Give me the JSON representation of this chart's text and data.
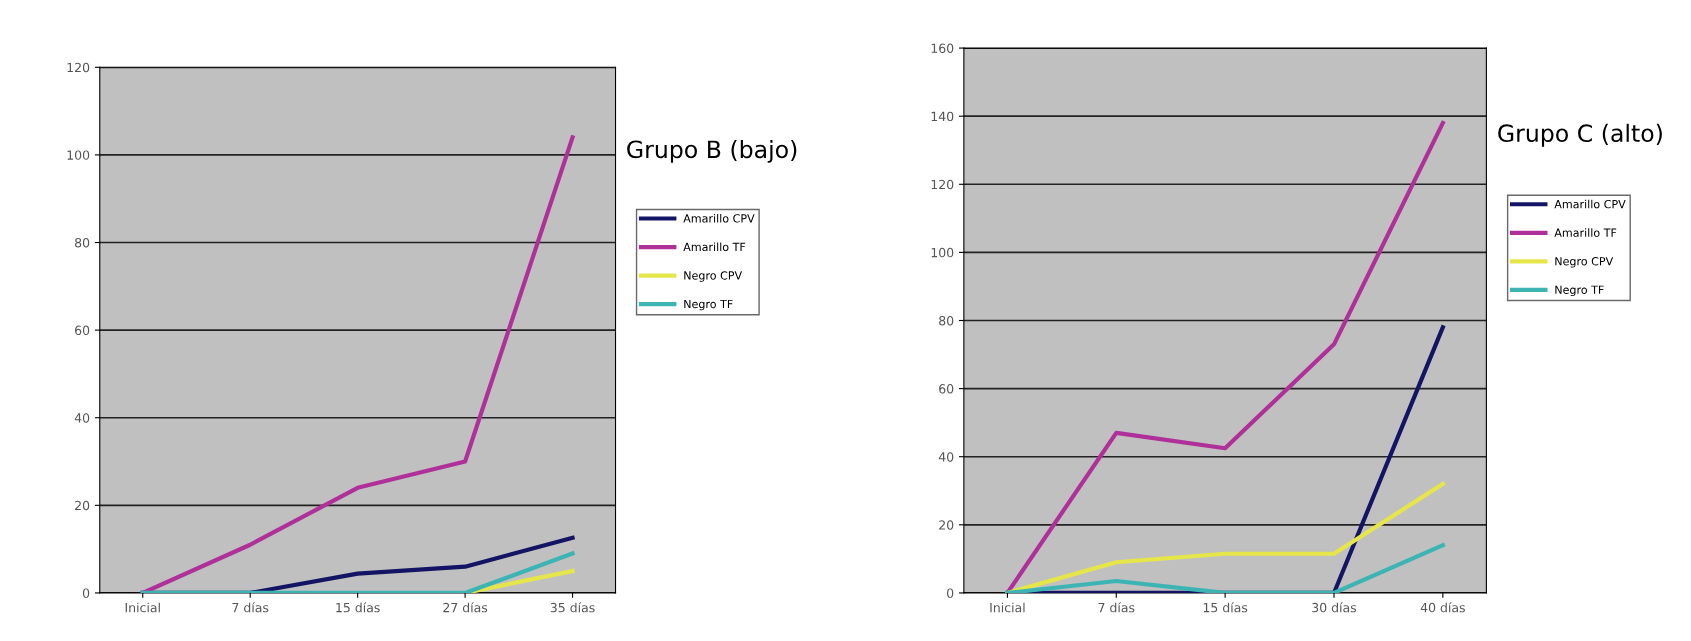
{
  "chart_data": [
    {
      "type": "line",
      "title": "Grupo B (bajo)",
      "categories": [
        "Inicial",
        "7 días",
        "15 días",
        "27 días",
        "35 días"
      ],
      "ylim": [
        0,
        120
      ],
      "yticks": [
        0,
        20,
        40,
        60,
        80,
        100,
        120
      ],
      "grid": "y",
      "legend": "right",
      "series": [
        {
          "name": "Amarillo CPV",
          "color": "#141464",
          "values": [
            0,
            0,
            4.4,
            6,
            12.6
          ]
        },
        {
          "name": "Amarillo TF",
          "color": "#b0309a",
          "values": [
            0,
            11,
            24,
            30,
            104
          ]
        },
        {
          "name": "Negro CPV",
          "color": "#e6e64a",
          "values": [
            null,
            null,
            null,
            0,
            5
          ]
        },
        {
          "name": "Negro TF",
          "color": "#3cb4b4",
          "values": [
            0,
            0,
            0,
            0,
            9
          ]
        }
      ]
    },
    {
      "type": "line",
      "title": "Grupo C (alto)",
      "categories": [
        "Inicial",
        "7 días",
        "15 días",
        "30 días",
        "40 días"
      ],
      "ylim": [
        0,
        160
      ],
      "yticks": [
        0,
        20,
        40,
        60,
        80,
        100,
        120,
        140,
        160
      ],
      "grid": "y",
      "legend": "right",
      "series": [
        {
          "name": "Amarillo CPV",
          "color": "#141464",
          "values": [
            0,
            0,
            0,
            0,
            78
          ]
        },
        {
          "name": "Amarillo TF",
          "color": "#b0309a",
          "values": [
            0,
            47,
            42.5,
            73,
            138
          ]
        },
        {
          "name": "Negro CPV",
          "color": "#e6e64a",
          "values": [
            0,
            9,
            11.5,
            11.5,
            32
          ]
        },
        {
          "name": "Negro TF",
          "color": "#3cb4b4",
          "values": [
            0,
            3.5,
            0,
            0,
            14
          ]
        }
      ]
    }
  ]
}
